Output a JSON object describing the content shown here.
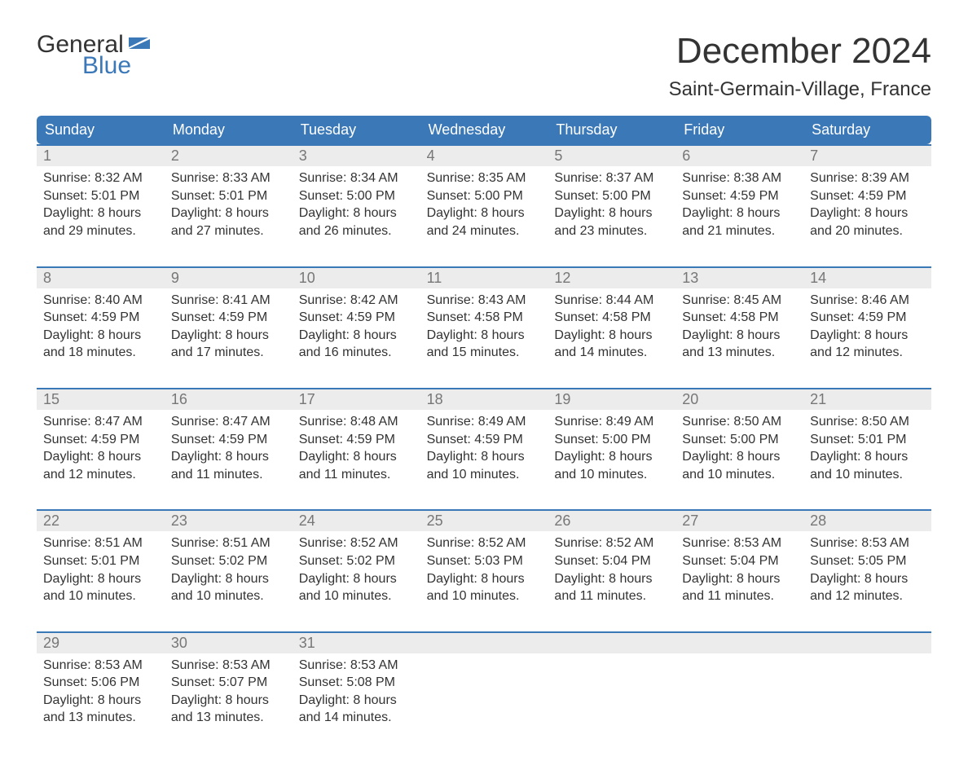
{
  "brand": {
    "word1": "General",
    "word2": "Blue"
  },
  "title": "December 2024",
  "subtitle": "Saint-Germain-Village, France",
  "colors": {
    "header_bg": "#3b78b8",
    "header_text": "#ffffff",
    "week_border": "#3b78b8",
    "daynum_bg": "#ececec",
    "daynum_text": "#777777",
    "body_text": "#333333",
    "brand_blue": "#3b78b8"
  },
  "typography": {
    "title_fontsize": 44,
    "subtitle_fontsize": 24,
    "dow_fontsize": 18,
    "daynum_fontsize": 18,
    "body_fontsize": 16
  },
  "days_of_week": [
    "Sunday",
    "Monday",
    "Tuesday",
    "Wednesday",
    "Thursday",
    "Friday",
    "Saturday"
  ],
  "labels": {
    "sunrise": "Sunrise:",
    "sunset": "Sunset:",
    "daylight": "Daylight:"
  },
  "weeks": [
    [
      {
        "n": 1,
        "sunrise": "8:32 AM",
        "sunset": "5:01 PM",
        "daylight": "8 hours and 29 minutes."
      },
      {
        "n": 2,
        "sunrise": "8:33 AM",
        "sunset": "5:01 PM",
        "daylight": "8 hours and 27 minutes."
      },
      {
        "n": 3,
        "sunrise": "8:34 AM",
        "sunset": "5:00 PM",
        "daylight": "8 hours and 26 minutes."
      },
      {
        "n": 4,
        "sunrise": "8:35 AM",
        "sunset": "5:00 PM",
        "daylight": "8 hours and 24 minutes."
      },
      {
        "n": 5,
        "sunrise": "8:37 AM",
        "sunset": "5:00 PM",
        "daylight": "8 hours and 23 minutes."
      },
      {
        "n": 6,
        "sunrise": "8:38 AM",
        "sunset": "4:59 PM",
        "daylight": "8 hours and 21 minutes."
      },
      {
        "n": 7,
        "sunrise": "8:39 AM",
        "sunset": "4:59 PM",
        "daylight": "8 hours and 20 minutes."
      }
    ],
    [
      {
        "n": 8,
        "sunrise": "8:40 AM",
        "sunset": "4:59 PM",
        "daylight": "8 hours and 18 minutes."
      },
      {
        "n": 9,
        "sunrise": "8:41 AM",
        "sunset": "4:59 PM",
        "daylight": "8 hours and 17 minutes."
      },
      {
        "n": 10,
        "sunrise": "8:42 AM",
        "sunset": "4:59 PM",
        "daylight": "8 hours and 16 minutes."
      },
      {
        "n": 11,
        "sunrise": "8:43 AM",
        "sunset": "4:58 PM",
        "daylight": "8 hours and 15 minutes."
      },
      {
        "n": 12,
        "sunrise": "8:44 AM",
        "sunset": "4:58 PM",
        "daylight": "8 hours and 14 minutes."
      },
      {
        "n": 13,
        "sunrise": "8:45 AM",
        "sunset": "4:58 PM",
        "daylight": "8 hours and 13 minutes."
      },
      {
        "n": 14,
        "sunrise": "8:46 AM",
        "sunset": "4:59 PM",
        "daylight": "8 hours and 12 minutes."
      }
    ],
    [
      {
        "n": 15,
        "sunrise": "8:47 AM",
        "sunset": "4:59 PM",
        "daylight": "8 hours and 12 minutes."
      },
      {
        "n": 16,
        "sunrise": "8:47 AM",
        "sunset": "4:59 PM",
        "daylight": "8 hours and 11 minutes."
      },
      {
        "n": 17,
        "sunrise": "8:48 AM",
        "sunset": "4:59 PM",
        "daylight": "8 hours and 11 minutes."
      },
      {
        "n": 18,
        "sunrise": "8:49 AM",
        "sunset": "4:59 PM",
        "daylight": "8 hours and 10 minutes."
      },
      {
        "n": 19,
        "sunrise": "8:49 AM",
        "sunset": "5:00 PM",
        "daylight": "8 hours and 10 minutes."
      },
      {
        "n": 20,
        "sunrise": "8:50 AM",
        "sunset": "5:00 PM",
        "daylight": "8 hours and 10 minutes."
      },
      {
        "n": 21,
        "sunrise": "8:50 AM",
        "sunset": "5:01 PM",
        "daylight": "8 hours and 10 minutes."
      }
    ],
    [
      {
        "n": 22,
        "sunrise": "8:51 AM",
        "sunset": "5:01 PM",
        "daylight": "8 hours and 10 minutes."
      },
      {
        "n": 23,
        "sunrise": "8:51 AM",
        "sunset": "5:02 PM",
        "daylight": "8 hours and 10 minutes."
      },
      {
        "n": 24,
        "sunrise": "8:52 AM",
        "sunset": "5:02 PM",
        "daylight": "8 hours and 10 minutes."
      },
      {
        "n": 25,
        "sunrise": "8:52 AM",
        "sunset": "5:03 PM",
        "daylight": "8 hours and 10 minutes."
      },
      {
        "n": 26,
        "sunrise": "8:52 AM",
        "sunset": "5:04 PM",
        "daylight": "8 hours and 11 minutes."
      },
      {
        "n": 27,
        "sunrise": "8:53 AM",
        "sunset": "5:04 PM",
        "daylight": "8 hours and 11 minutes."
      },
      {
        "n": 28,
        "sunrise": "8:53 AM",
        "sunset": "5:05 PM",
        "daylight": "8 hours and 12 minutes."
      }
    ],
    [
      {
        "n": 29,
        "sunrise": "8:53 AM",
        "sunset": "5:06 PM",
        "daylight": "8 hours and 13 minutes."
      },
      {
        "n": 30,
        "sunrise": "8:53 AM",
        "sunset": "5:07 PM",
        "daylight": "8 hours and 13 minutes."
      },
      {
        "n": 31,
        "sunrise": "8:53 AM",
        "sunset": "5:08 PM",
        "daylight": "8 hours and 14 minutes."
      },
      null,
      null,
      null,
      null
    ]
  ]
}
